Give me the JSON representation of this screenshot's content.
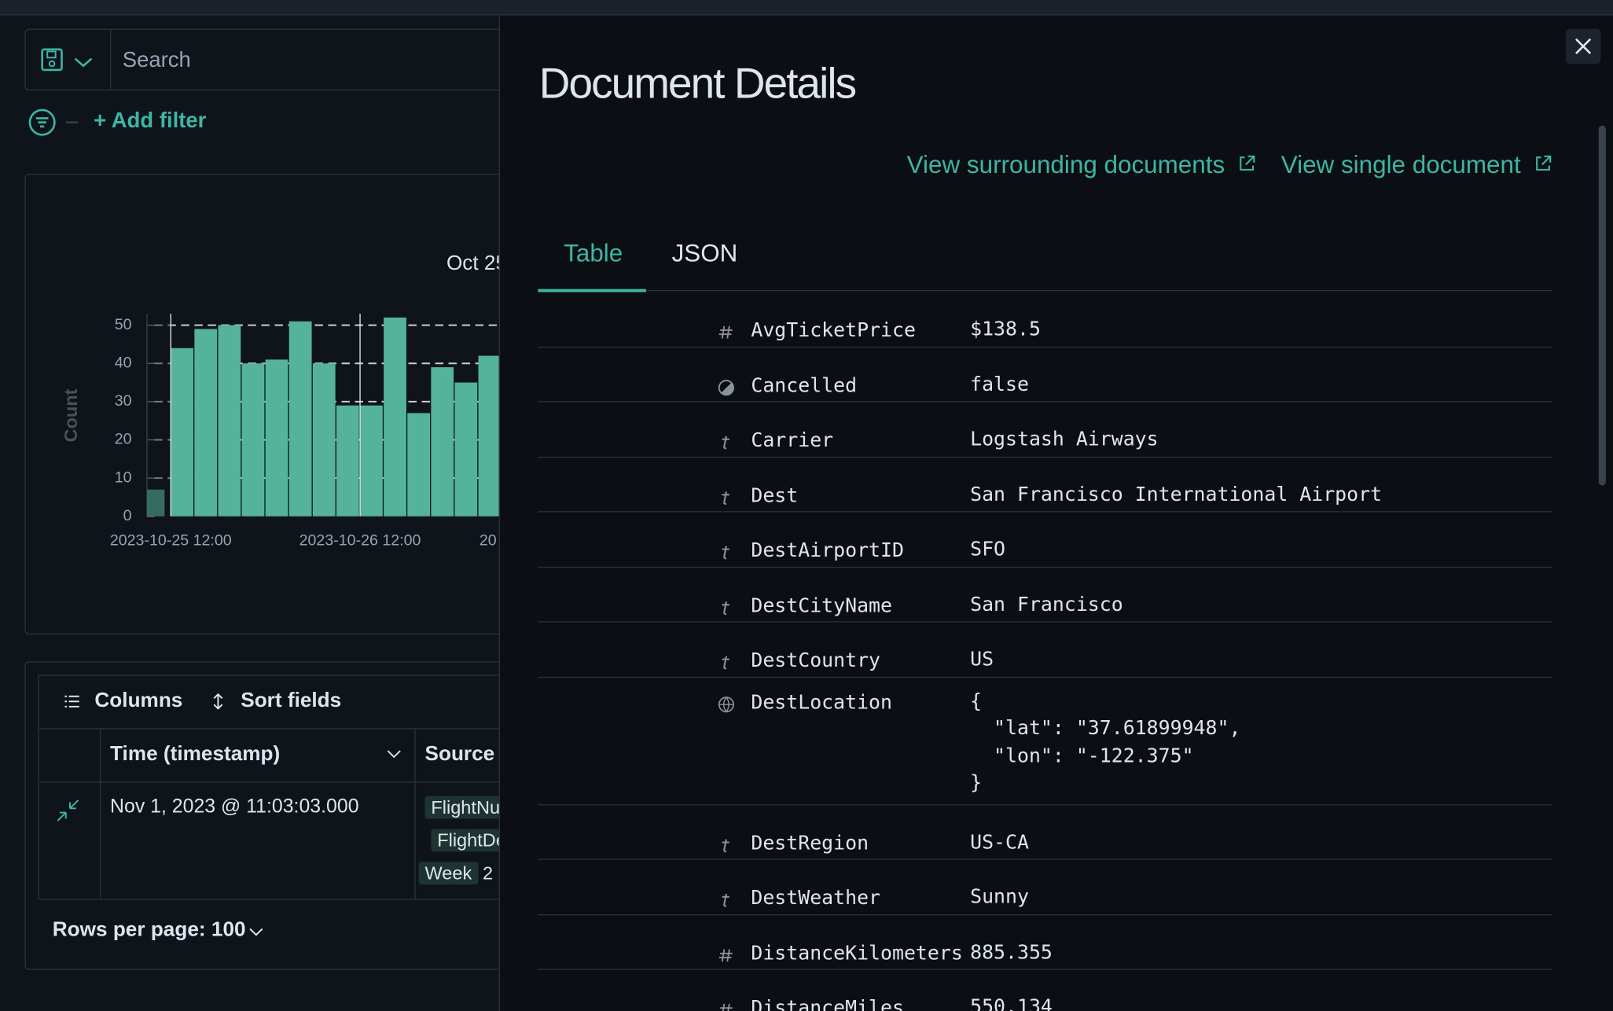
{
  "search": {
    "placeholder": "Search"
  },
  "filter": {
    "add_filter": "+ Add filter"
  },
  "histogram": {
    "title": "Oct 25",
    "y_label": "Count",
    "ylim": [
      0,
      53
    ],
    "yticks": [
      0,
      10,
      20,
      30,
      40,
      50
    ],
    "xtick_labels": [
      "2023-10-25 12:00",
      "2023-10-26 12:00",
      "20"
    ],
    "values": [
      7,
      44,
      49,
      50,
      40,
      41,
      51,
      40,
      29,
      29,
      52,
      27,
      39,
      35,
      42
    ],
    "color": "#54b399"
  },
  "grid": {
    "toolbar": {
      "columns": "Columns",
      "sort_fields": "Sort fields"
    },
    "headers": [
      "Time (timestamp)",
      "Source"
    ],
    "row": {
      "time": "Nov 1, 2023 @ 11:03:03.000",
      "source": [
        "FlightNu",
        "FlightDe",
        "Week",
        "2"
      ]
    },
    "rows_per_page": "Rows per page: 100"
  },
  "flyout": {
    "title": "Document Details",
    "links": [
      "View surrounding documents",
      "View single document"
    ],
    "tabs": [
      "Table",
      "JSON"
    ],
    "fields": [
      {
        "type": "number",
        "name": "AvgTicketPrice",
        "value": "$138.5"
      },
      {
        "type": "boolean",
        "name": "Cancelled",
        "value": "false"
      },
      {
        "type": "string",
        "name": "Carrier",
        "value": "Logstash Airways"
      },
      {
        "type": "string",
        "name": "Dest",
        "value": "San Francisco International Airport"
      },
      {
        "type": "string",
        "name": "DestAirportID",
        "value": "SFO"
      },
      {
        "type": "string",
        "name": "DestCityName",
        "value": "San Francisco"
      },
      {
        "type": "string",
        "name": "DestCountry",
        "value": "US"
      },
      {
        "type": "geo",
        "name": "DestLocation",
        "value": "{\n  \"lat\": \"37.61899948\",\n  \"lon\": \"-122.375\"\n}"
      },
      {
        "type": "string",
        "name": "DestRegion",
        "value": "US-CA"
      },
      {
        "type": "string",
        "name": "DestWeather",
        "value": "Sunny"
      },
      {
        "type": "number",
        "name": "DistanceKilometers",
        "value": "885.355"
      },
      {
        "type": "number",
        "name": "DistanceMiles",
        "value": "550.134"
      }
    ]
  }
}
